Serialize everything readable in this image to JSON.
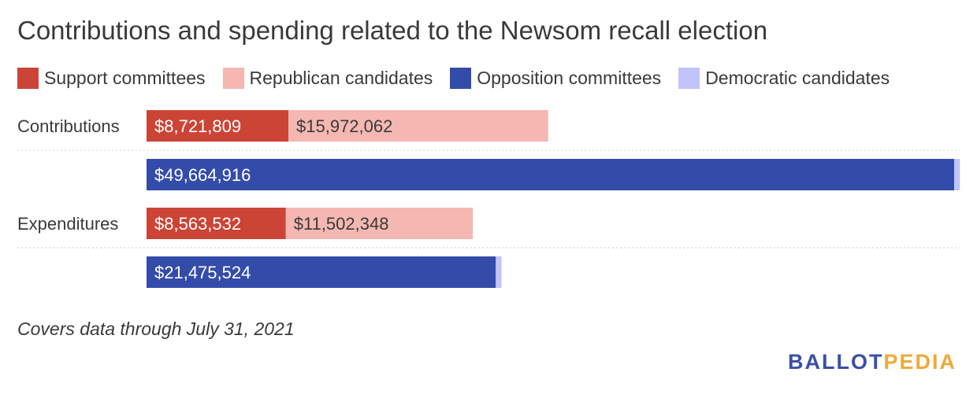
{
  "chart_data": {
    "type": "bar",
    "title": "Contributions and spending related to the Newsom recall election",
    "categories": [
      "Contributions",
      "Expenditures"
    ],
    "series": [
      {
        "name": "Support committees",
        "color": "#cc4436",
        "values": [
          8721809,
          8563532
        ],
        "labels": [
          "$8,721,809",
          "$8,563,532"
        ]
      },
      {
        "name": "Republican candidates",
        "color": "#f5b7b1",
        "values": [
          15972062,
          11502348
        ],
        "labels": [
          "$15,972,062",
          "$11,502,348"
        ]
      },
      {
        "name": "Opposition committees",
        "color": "#344ca9",
        "values": [
          49664916,
          21475524
        ],
        "labels": [
          "$49,664,916",
          "$21,475,524"
        ]
      },
      {
        "name": "Democratic candidates",
        "color": "#c1c3fb",
        "values": [
          350000,
          350000
        ],
        "labels": [
          "",
          ""
        ]
      }
    ],
    "stacks": [
      [
        "Support committees",
        "Republican candidates"
      ],
      [
        "Opposition committees",
        "Democratic candidates"
      ]
    ],
    "xlim": [
      0,
      50000000
    ],
    "legend_position": "top",
    "grid": false,
    "note": "Covers data through July 31, 2021"
  },
  "logo": {
    "part1": "BALLOT",
    "part2": "PEDIA",
    "color1": "#3a4fa8",
    "color2": "#f0a93a"
  }
}
